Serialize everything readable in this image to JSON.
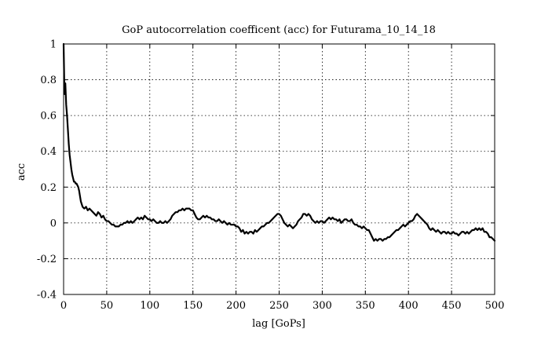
{
  "chart_data": {
    "type": "line",
    "title": "GoP autocorrelation coefficent (acc) for Futurama_10_14_18",
    "xlabel": "lag [GoPs]",
    "ylabel": "acc",
    "xlim": [
      0,
      500
    ],
    "ylim": [
      -0.4,
      1
    ],
    "x_ticks": [
      0,
      50,
      100,
      150,
      200,
      250,
      300,
      350,
      400,
      450,
      500
    ],
    "y_ticks": [
      -0.4,
      -0.2,
      0,
      0.2,
      0.4,
      0.6,
      0.8,
      1
    ],
    "x_tick_labels": [
      "0",
      "50",
      "100",
      "150",
      "200",
      "250",
      "300",
      "350",
      "400",
      "450",
      "500"
    ],
    "y_tick_labels": [
      "-0.4",
      "-0.2",
      "0",
      "0.2",
      "0.4",
      "0.6",
      "0.8",
      "1"
    ],
    "grid": true,
    "grid_style": "dotted",
    "series": [
      {
        "color": "#000000",
        "points": [
          [
            0,
            1.0
          ],
          [
            1,
            0.72
          ],
          [
            2,
            0.78
          ],
          [
            3,
            0.66
          ],
          [
            4,
            0.6
          ],
          [
            5,
            0.52
          ],
          [
            6,
            0.44
          ],
          [
            7,
            0.38
          ],
          [
            8,
            0.34
          ],
          [
            9,
            0.3
          ],
          [
            10,
            0.27
          ],
          [
            11,
            0.25
          ],
          [
            12,
            0.23
          ],
          [
            13,
            0.23
          ],
          [
            14,
            0.22
          ],
          [
            15,
            0.22
          ],
          [
            16,
            0.21
          ],
          [
            17,
            0.2
          ],
          [
            18,
            0.18
          ],
          [
            19,
            0.15
          ],
          [
            20,
            0.12
          ],
          [
            22,
            0.09
          ],
          [
            24,
            0.08
          ],
          [
            26,
            0.09
          ],
          [
            28,
            0.07
          ],
          [
            30,
            0.08
          ],
          [
            32,
            0.07
          ],
          [
            34,
            0.06
          ],
          [
            36,
            0.05
          ],
          [
            38,
            0.04
          ],
          [
            40,
            0.06
          ],
          [
            42,
            0.05
          ],
          [
            44,
            0.03
          ],
          [
            46,
            0.04
          ],
          [
            48,
            0.02
          ],
          [
            50,
            0.01
          ],
          [
            52,
            0.01
          ],
          [
            54,
            0.0
          ],
          [
            56,
            -0.01
          ],
          [
            58,
            -0.01
          ],
          [
            60,
            -0.02
          ],
          [
            62,
            -0.02
          ],
          [
            64,
            -0.02
          ],
          [
            66,
            -0.01
          ],
          [
            68,
            -0.01
          ],
          [
            70,
            0.0
          ],
          [
            72,
            0.0
          ],
          [
            74,
            0.01
          ],
          [
            76,
            0.0
          ],
          [
            78,
            0.01
          ],
          [
            80,
            0.0
          ],
          [
            82,
            0.01
          ],
          [
            84,
            0.02
          ],
          [
            86,
            0.03
          ],
          [
            88,
            0.02
          ],
          [
            90,
            0.03
          ],
          [
            92,
            0.02
          ],
          [
            94,
            0.04
          ],
          [
            96,
            0.03
          ],
          [
            98,
            0.02
          ],
          [
            100,
            0.02
          ],
          [
            102,
            0.01
          ],
          [
            104,
            0.02
          ],
          [
            106,
            0.01
          ],
          [
            108,
            0.0
          ],
          [
            110,
            0.0
          ],
          [
            112,
            0.01
          ],
          [
            114,
            0.0
          ],
          [
            116,
            0.0
          ],
          [
            118,
            0.01
          ],
          [
            120,
            0.0
          ],
          [
            122,
            0.01
          ],
          [
            124,
            0.02
          ],
          [
            126,
            0.04
          ],
          [
            128,
            0.05
          ],
          [
            130,
            0.06
          ],
          [
            132,
            0.06
          ],
          [
            134,
            0.07
          ],
          [
            136,
            0.07
          ],
          [
            138,
            0.08
          ],
          [
            140,
            0.07
          ],
          [
            142,
            0.08
          ],
          [
            144,
            0.08
          ],
          [
            146,
            0.08
          ],
          [
            148,
            0.07
          ],
          [
            150,
            0.07
          ],
          [
            152,
            0.05
          ],
          [
            154,
            0.03
          ],
          [
            156,
            0.02
          ],
          [
            158,
            0.02
          ],
          [
            160,
            0.03
          ],
          [
            162,
            0.04
          ],
          [
            164,
            0.03
          ],
          [
            166,
            0.04
          ],
          [
            168,
            0.03
          ],
          [
            170,
            0.03
          ],
          [
            172,
            0.02
          ],
          [
            174,
            0.02
          ],
          [
            176,
            0.01
          ],
          [
            178,
            0.01
          ],
          [
            180,
            0.02
          ],
          [
            182,
            0.01
          ],
          [
            184,
            0.0
          ],
          [
            186,
            0.01
          ],
          [
            188,
            0.0
          ],
          [
            190,
            -0.01
          ],
          [
            192,
            0.0
          ],
          [
            194,
            -0.01
          ],
          [
            196,
            -0.01
          ],
          [
            198,
            -0.01
          ],
          [
            200,
            -0.02
          ],
          [
            202,
            -0.02
          ],
          [
            204,
            -0.03
          ],
          [
            206,
            -0.05
          ],
          [
            208,
            -0.04
          ],
          [
            210,
            -0.06
          ],
          [
            212,
            -0.05
          ],
          [
            214,
            -0.06
          ],
          [
            216,
            -0.05
          ],
          [
            218,
            -0.05
          ],
          [
            220,
            -0.06
          ],
          [
            222,
            -0.04
          ],
          [
            224,
            -0.05
          ],
          [
            226,
            -0.04
          ],
          [
            228,
            -0.03
          ],
          [
            230,
            -0.02
          ],
          [
            232,
            -0.02
          ],
          [
            234,
            -0.01
          ],
          [
            236,
            0.0
          ],
          [
            238,
            0.0
          ],
          [
            240,
            0.01
          ],
          [
            242,
            0.02
          ],
          [
            244,
            0.03
          ],
          [
            246,
            0.04
          ],
          [
            248,
            0.05
          ],
          [
            250,
            0.05
          ],
          [
            252,
            0.04
          ],
          [
            254,
            0.02
          ],
          [
            256,
            0.0
          ],
          [
            258,
            -0.01
          ],
          [
            260,
            -0.02
          ],
          [
            262,
            -0.01
          ],
          [
            264,
            -0.02
          ],
          [
            266,
            -0.03
          ],
          [
            268,
            -0.02
          ],
          [
            270,
            -0.01
          ],
          [
            272,
            0.01
          ],
          [
            274,
            0.02
          ],
          [
            276,
            0.03
          ],
          [
            278,
            0.05
          ],
          [
            280,
            0.05
          ],
          [
            282,
            0.04
          ],
          [
            284,
            0.05
          ],
          [
            286,
            0.04
          ],
          [
            288,
            0.02
          ],
          [
            290,
            0.01
          ],
          [
            292,
            0.0
          ],
          [
            294,
            0.01
          ],
          [
            296,
            0.0
          ],
          [
            298,
            0.01
          ],
          [
            300,
            0.01
          ],
          [
            302,
            0.0
          ],
          [
            304,
            0.01
          ],
          [
            306,
            0.02
          ],
          [
            308,
            0.03
          ],
          [
            310,
            0.02
          ],
          [
            312,
            0.03
          ],
          [
            314,
            0.02
          ],
          [
            316,
            0.02
          ],
          [
            318,
            0.01
          ],
          [
            320,
            0.02
          ],
          [
            322,
            0.0
          ],
          [
            324,
            0.01
          ],
          [
            326,
            0.02
          ],
          [
            328,
            0.02
          ],
          [
            330,
            0.01
          ],
          [
            332,
            0.01
          ],
          [
            334,
            0.02
          ],
          [
            336,
            0.0
          ],
          [
            338,
            -0.01
          ],
          [
            340,
            -0.01
          ],
          [
            342,
            -0.02
          ],
          [
            344,
            -0.02
          ],
          [
            346,
            -0.03
          ],
          [
            348,
            -0.02
          ],
          [
            350,
            -0.03
          ],
          [
            352,
            -0.04
          ],
          [
            354,
            -0.04
          ],
          [
            356,
            -0.06
          ],
          [
            358,
            -0.08
          ],
          [
            360,
            -0.1
          ],
          [
            362,
            -0.09
          ],
          [
            364,
            -0.1
          ],
          [
            366,
            -0.09
          ],
          [
            368,
            -0.09
          ],
          [
            370,
            -0.1
          ],
          [
            372,
            -0.09
          ],
          [
            374,
            -0.09
          ],
          [
            376,
            -0.08
          ],
          [
            378,
            -0.08
          ],
          [
            380,
            -0.07
          ],
          [
            382,
            -0.06
          ],
          [
            384,
            -0.05
          ],
          [
            386,
            -0.04
          ],
          [
            388,
            -0.04
          ],
          [
            390,
            -0.03
          ],
          [
            392,
            -0.02
          ],
          [
            394,
            -0.01
          ],
          [
            396,
            -0.02
          ],
          [
            398,
            -0.01
          ],
          [
            400,
            0.0
          ],
          [
            402,
            0.01
          ],
          [
            404,
            0.01
          ],
          [
            406,
            0.02
          ],
          [
            408,
            0.04
          ],
          [
            410,
            0.05
          ],
          [
            412,
            0.04
          ],
          [
            414,
            0.03
          ],
          [
            416,
            0.02
          ],
          [
            418,
            0.01
          ],
          [
            420,
            0.0
          ],
          [
            422,
            -0.01
          ],
          [
            424,
            -0.03
          ],
          [
            426,
            -0.04
          ],
          [
            428,
            -0.03
          ],
          [
            430,
            -0.04
          ],
          [
            432,
            -0.05
          ],
          [
            434,
            -0.04
          ],
          [
            436,
            -0.05
          ],
          [
            438,
            -0.06
          ],
          [
            440,
            -0.05
          ],
          [
            442,
            -0.05
          ],
          [
            444,
            -0.06
          ],
          [
            446,
            -0.05
          ],
          [
            448,
            -0.06
          ],
          [
            450,
            -0.06
          ],
          [
            452,
            -0.05
          ],
          [
            454,
            -0.06
          ],
          [
            456,
            -0.06
          ],
          [
            458,
            -0.07
          ],
          [
            460,
            -0.06
          ],
          [
            462,
            -0.05
          ],
          [
            464,
            -0.05
          ],
          [
            466,
            -0.06
          ],
          [
            468,
            -0.05
          ],
          [
            470,
            -0.06
          ],
          [
            472,
            -0.05
          ],
          [
            474,
            -0.04
          ],
          [
            476,
            -0.04
          ],
          [
            478,
            -0.03
          ],
          [
            480,
            -0.04
          ],
          [
            482,
            -0.03
          ],
          [
            484,
            -0.04
          ],
          [
            486,
            -0.03
          ],
          [
            488,
            -0.05
          ],
          [
            490,
            -0.05
          ],
          [
            492,
            -0.06
          ],
          [
            494,
            -0.08
          ],
          [
            496,
            -0.08
          ],
          [
            498,
            -0.09
          ],
          [
            500,
            -0.1
          ]
        ]
      }
    ]
  }
}
